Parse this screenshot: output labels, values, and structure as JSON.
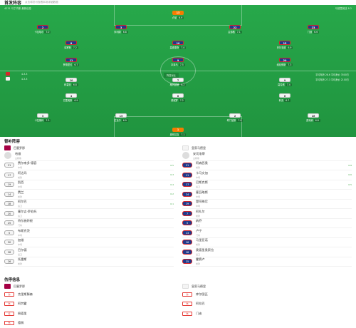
{
  "header": {
    "title": "首发阵容",
    "subtitle": "点击球员可查看本场详细数据"
  },
  "pitch": {
    "top_left": "4231 马丁内斯 最新信息",
    "top_right": "马德里竞技 8.2",
    "mid_left_a": "4-3-3",
    "mid_left_b": "4-3-3",
    "mid_right_a": "平均年龄 28.6 平均身价 3500万",
    "mid_right_b": "平均年龄 27.3 平均身价 2100万",
    "center_label": "阵容对比",
    "team_home_players": [
      {
        "num": "1",
        "name": "奥布拉克",
        "rating": "7.1",
        "gk": true
      },
      {
        "num": "16",
        "name": "莫利纳",
        "rating": "6.8"
      },
      {
        "num": "2",
        "name": "希门尼斯",
        "rating": "7.0"
      },
      {
        "num": "15",
        "name": "拉瓦尔",
        "rating": "6.9"
      },
      {
        "num": "3",
        "name": "卡拉斯科",
        "rating": "7.3"
      },
      {
        "num": "6",
        "name": "科克",
        "rating": "6.7"
      },
      {
        "num": "8",
        "name": "德保罗",
        "rating": "7.2"
      },
      {
        "num": "4",
        "name": "巴里奥斯",
        "rating": "6.9"
      },
      {
        "num": "9",
        "name": "莫拉塔",
        "rating": "7.4"
      },
      {
        "num": "7",
        "name": "格列兹曼",
        "rating": "8.2"
      },
      {
        "num": "10",
        "name": "科雷亚",
        "rating": "6.8"
      }
    ],
    "team_away_players": [
      {
        "num": "13",
        "name": "卢尼",
        "rating": "6.9",
        "gk": true
      },
      {
        "num": "2",
        "name": "卡瓦哈尔",
        "rating": "7.0"
      },
      {
        "num": "3",
        "name": "米利唐",
        "rating": "6.8"
      },
      {
        "num": "22",
        "name": "吕迪格",
        "rating": "7.1"
      },
      {
        "num": "23",
        "name": "门迪",
        "rating": "6.6"
      },
      {
        "num": "8",
        "name": "克罗斯",
        "rating": "7.2"
      },
      {
        "num": "10",
        "name": "莫德里奇",
        "rating": "7.0"
      },
      {
        "num": "15",
        "name": "巴尔韦德",
        "rating": "6.9"
      },
      {
        "num": "11",
        "name": "罗德里戈",
        "rating": "6.7"
      },
      {
        "num": "9",
        "name": "本泽马",
        "rating": "7.5"
      },
      {
        "num": "20",
        "name": "维尼修斯",
        "rating": "7.3"
      }
    ]
  },
  "subs": {
    "title": "替补阵容",
    "home": {
      "team": "巴塞罗那",
      "coach": "哈维",
      "coach_role": "主教练",
      "players": [
        {
          "num": "21",
          "name": "费尔南多·德容",
          "meta": "中场",
          "rating": "6.5"
        },
        {
          "num": "17",
          "name": "阿达玛",
          "meta": "前锋",
          "rating": "6.3"
        },
        {
          "num": "19",
          "name": "凯西",
          "meta": "中场",
          "rating": "6.4"
        },
        {
          "num": "14",
          "name": "费兰",
          "meta": "前锋",
          "rating": "6.2"
        },
        {
          "num": "18",
          "name": "阿尔巴",
          "meta": "后卫",
          "rating": "6.1"
        },
        {
          "num": "20",
          "name": "塞尔吉·罗伯托",
          "meta": "后卫",
          "rating": ""
        },
        {
          "num": "25",
          "name": "特尔施特根",
          "meta": "门将",
          "rating": ""
        },
        {
          "num": "5",
          "name": "布斯克茨",
          "meta": "中场",
          "rating": ""
        },
        {
          "num": "30",
          "name": "加维",
          "meta": "中场",
          "rating": ""
        },
        {
          "num": "28",
          "name": "巴尔德",
          "meta": "后卫",
          "rating": ""
        },
        {
          "num": "26",
          "name": "托雷斯",
          "meta": "前锋",
          "rating": ""
        }
      ]
    },
    "away": {
      "team": "皇家马德里",
      "coach": "安切洛蒂",
      "coach_role": "主教练",
      "players": [
        {
          "num": "21",
          "name": "阿森西奥",
          "meta": "前锋",
          "rating": "6.8"
        },
        {
          "num": "11",
          "name": "卡马文加",
          "meta": "中场",
          "rating": "6.6"
        },
        {
          "num": "17",
          "name": "巴斯克斯",
          "meta": "后卫",
          "rating": "6.5"
        },
        {
          "num": "24",
          "name": "塞瓦略斯",
          "meta": "中场",
          "rating": ""
        },
        {
          "num": "19",
          "name": "楚阿梅尼",
          "meta": "中场",
          "rating": ""
        },
        {
          "num": "7",
          "name": "阿扎尔",
          "meta": "前锋",
          "rating": ""
        },
        {
          "num": "5",
          "name": "纳乔",
          "meta": "后卫",
          "rating": ""
        },
        {
          "num": "13",
          "name": "卢宁",
          "meta": "门将",
          "rating": ""
        },
        {
          "num": "16",
          "name": "马里亚诺",
          "meta": "前锋",
          "rating": ""
        },
        {
          "num": "18",
          "name": "奥德里奥索拉",
          "meta": "后卫",
          "rating": ""
        },
        {
          "num": "25",
          "name": "霍赛卢",
          "meta": "前锋",
          "rating": ""
        }
      ]
    }
  },
  "injuries": {
    "title": "伤停信息",
    "home": {
      "team": "巴塞罗那",
      "items": [
        {
          "tag": "伤",
          "name": "克里斯滕森"
        },
        {
          "tag": "伤",
          "name": "阿劳霍"
        },
        {
          "tag": "停",
          "name": "佩德里"
        },
        {
          "tag": "伤",
          "name": "德佩"
        }
      ]
    },
    "away": {
      "team": "皇家马德里",
      "items": [
        {
          "tag": "伤",
          "name": "库尔图瓦"
        },
        {
          "tag": "伤",
          "name": "阿拉巴"
        },
        {
          "tag": "伤",
          "name": "门迪"
        }
      ]
    }
  }
}
